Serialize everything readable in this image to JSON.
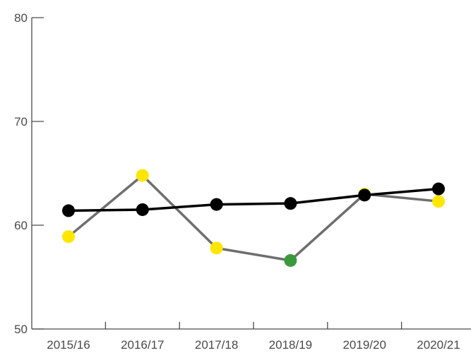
{
  "chart_data": {
    "type": "line",
    "categories": [
      "2015/16",
      "2016/17",
      "2017/18",
      "2018/19",
      "2019/20",
      "2020/21"
    ],
    "ylim": [
      50,
      80
    ],
    "yticks": [
      50,
      60,
      70,
      80
    ],
    "grid": false,
    "series": [
      {
        "values": [
          61.4,
          61.5,
          62.0,
          62.1,
          62.9,
          63.5
        ],
        "line_color": "#000000",
        "marker_colors": [
          "#000000",
          "#000000",
          "#000000",
          "#000000",
          "#000000",
          "#000000"
        ]
      },
      {
        "values": [
          58.9,
          64.8,
          57.8,
          56.6,
          63.0,
          62.3
        ],
        "line_color": "#6e6e6e",
        "marker_colors": [
          "#ffe600",
          "#ffe600",
          "#ffe600",
          "#3a9a3a",
          "#ffe600",
          "#ffe600"
        ]
      }
    ],
    "title": "",
    "xlabel": "",
    "ylabel": ""
  }
}
